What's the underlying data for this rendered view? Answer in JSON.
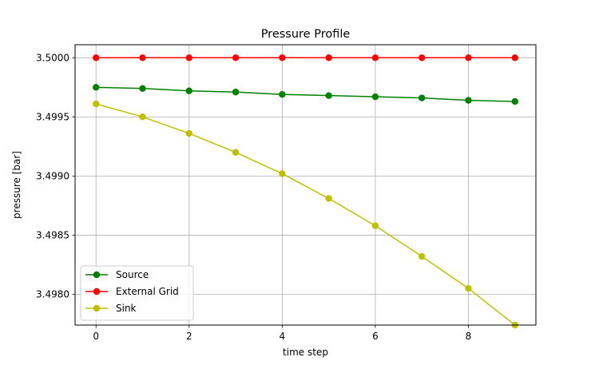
{
  "chart_data": {
    "type": "line",
    "title": "Pressure Profile",
    "xlabel": "time step",
    "ylabel": "pressure [bar]",
    "xlim": [
      -0.45,
      9.45
    ],
    "ylim": [
      3.49774,
      3.50011
    ],
    "xticks": [
      0,
      2,
      4,
      6,
      8
    ],
    "yticks": [
      3.498,
      3.4985,
      3.499,
      3.4995,
      3.5
    ],
    "ytick_labels": [
      "3.4980",
      "3.4985",
      "3.4990",
      "3.4995",
      "3.5000"
    ],
    "grid": true,
    "legend_position": "lower-left",
    "x": [
      0,
      1,
      2,
      3,
      4,
      5,
      6,
      7,
      8,
      9
    ],
    "series": [
      {
        "name": "Source",
        "color": "#008000",
        "values": [
          3.49975,
          3.49974,
          3.49972,
          3.49971,
          3.49969,
          3.49968,
          3.49967,
          3.49966,
          3.49964,
          3.49963
        ]
      },
      {
        "name": "External Grid",
        "color": "#ff0000",
        "values": [
          3.5,
          3.5,
          3.5,
          3.5,
          3.5,
          3.5,
          3.5,
          3.5,
          3.5,
          3.5
        ]
      },
      {
        "name": "Sink",
        "color": "#bfbf00",
        "values": [
          3.49961,
          3.4995,
          3.49936,
          3.4992,
          3.49902,
          3.49881,
          3.49858,
          3.49832,
          3.49805,
          3.49774
        ]
      }
    ]
  }
}
